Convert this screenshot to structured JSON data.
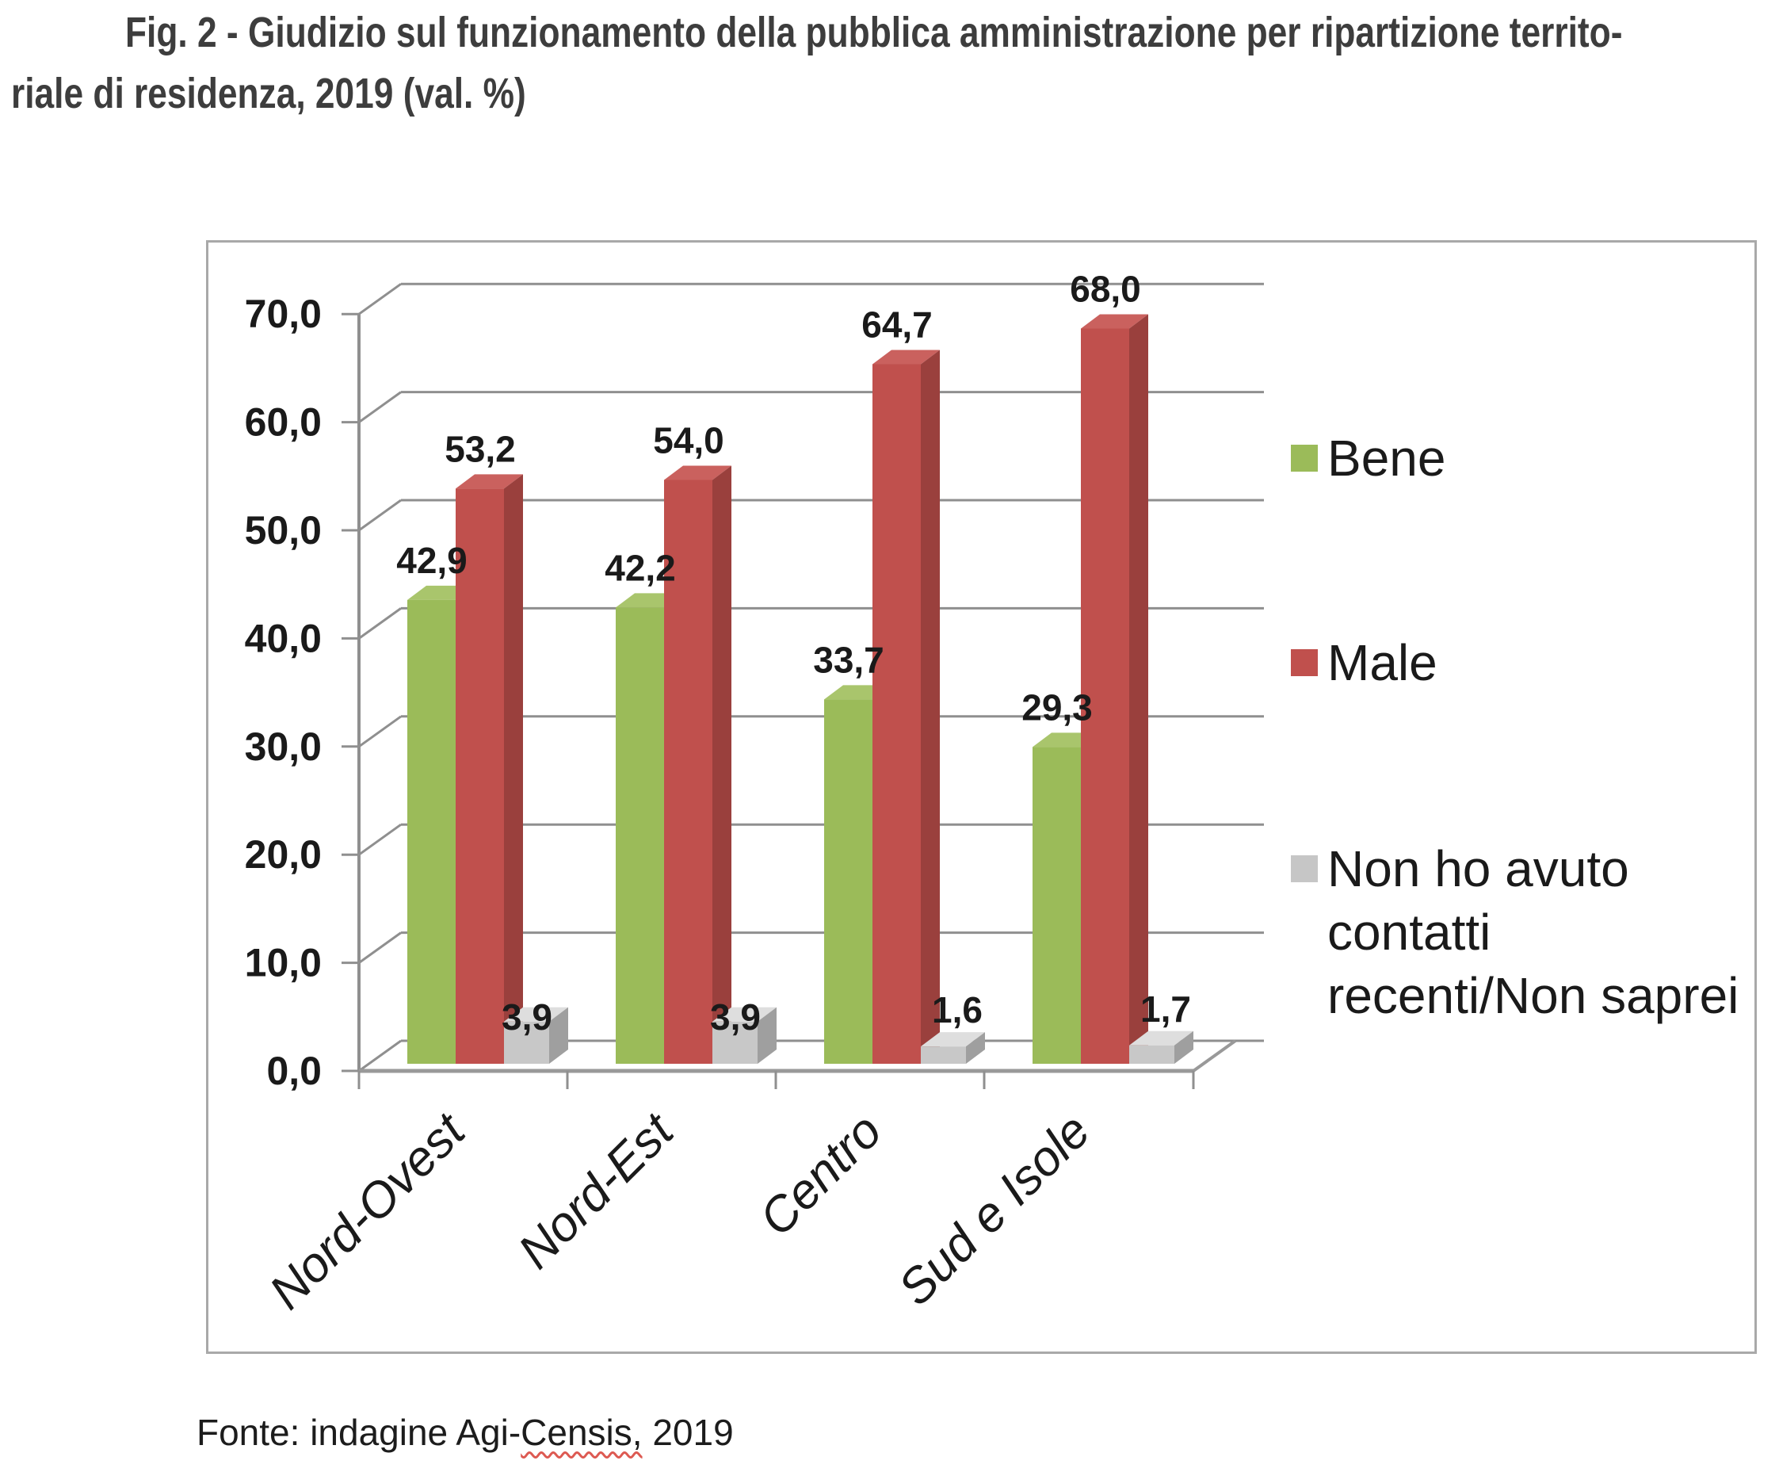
{
  "title": {
    "line1": "Fig. 2 - Giudizio sul funzionamento della pubblica amministrazione per ripartizione territo-",
    "line2": "riale di residenza, 2019 (val. %)"
  },
  "source": {
    "prefix": "Fonte: indagine Agi-",
    "underlined_word": "Censis,",
    "suffix": " 2019"
  },
  "chart_data": {
    "type": "bar",
    "style": "3d-clustered-column",
    "title": "",
    "categories": [
      "Nord-Ovest",
      "Nord-Est",
      "Centro",
      "Sud e Isole"
    ],
    "series": [
      {
        "name": "Bene",
        "color": "#9BBB59",
        "top_color": "#A9C56C",
        "side_color": "#7E9E45",
        "values": [
          42.9,
          42.2,
          33.7,
          29.3
        ],
        "labels": [
          "42,9",
          "42,2",
          "33,7",
          "29,3"
        ]
      },
      {
        "name": "Male",
        "color": "#C0504D",
        "top_color": "#CA615E",
        "side_color": "#9A403D",
        "values": [
          53.2,
          54.0,
          64.7,
          68.0
        ],
        "labels": [
          "53,2",
          "54,0",
          "64,7",
          "68,0"
        ]
      },
      {
        "name": "Non ho avuto contatti recenti/Non saprei",
        "color": "#C8C8C8",
        "top_color": "#DEDEDE",
        "side_color": "#9F9F9F",
        "values": [
          3.9,
          3.9,
          1.6,
          1.7
        ],
        "labels": [
          "3,9",
          "3,9",
          "1,6",
          "1,7"
        ]
      }
    ],
    "y_ticks": [
      "0,0",
      "10,0",
      "20,0",
      "30,0",
      "40,0",
      "50,0",
      "60,0",
      "70,0"
    ],
    "ylim": [
      0,
      70
    ],
    "y_step": 10,
    "grid": true,
    "grid_color": "#8f8f8f",
    "axis_color": "#999999",
    "value_label_color": "#1a1a1a",
    "legend_position": "right",
    "legend": [
      {
        "label_lines": [
          "Bene"
        ],
        "color": "#9BBB59"
      },
      {
        "label_lines": [
          "Male"
        ],
        "color": "#C0504D"
      },
      {
        "label_lines": [
          "Non ho avuto",
          "contatti",
          "recenti/Non saprei"
        ],
        "color": "#C6C6C6"
      }
    ]
  }
}
